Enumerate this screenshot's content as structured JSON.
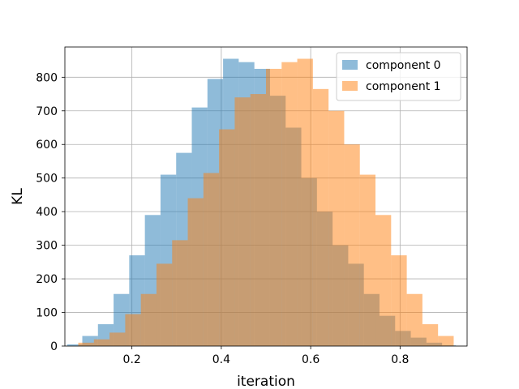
{
  "chart_data": {
    "type": "histogram",
    "xlabel": "iteration",
    "ylabel": "KL",
    "xlim": [
      0.05,
      0.95
    ],
    "ylim": [
      0,
      890
    ],
    "xticks": [
      0.2,
      0.4,
      0.6,
      0.8
    ],
    "xtick_labels": [
      "0.2",
      "0.4",
      "0.6",
      "0.8"
    ],
    "yticks": [
      0,
      100,
      200,
      300,
      400,
      500,
      600,
      700,
      800
    ],
    "ytick_labels": [
      "0",
      "100",
      "200",
      "300",
      "400",
      "500",
      "600",
      "700",
      "800"
    ],
    "grid": true,
    "legend_position": "upper right",
    "series": [
      {
        "name": "component 0",
        "color": "#1f77b4",
        "opacity": 0.5,
        "bin_edges": [
          0.055,
          0.089,
          0.124,
          0.159,
          0.194,
          0.229,
          0.264,
          0.299,
          0.334,
          0.369,
          0.404,
          0.439,
          0.474,
          0.509,
          0.544,
          0.579,
          0.614,
          0.649,
          0.684,
          0.719,
          0.754,
          0.789,
          0.824,
          0.859,
          0.894,
          0.925
        ],
        "counts": [
          5,
          30,
          65,
          155,
          270,
          390,
          510,
          575,
          710,
          795,
          855,
          845,
          825,
          745,
          650,
          500,
          400,
          300,
          245,
          155,
          90,
          45,
          25,
          10,
          2
        ]
      },
      {
        "name": "component 1",
        "color": "#ff7f0e",
        "opacity": 0.5,
        "bin_edges": [
          0.08,
          0.115,
          0.15,
          0.185,
          0.22,
          0.255,
          0.29,
          0.325,
          0.36,
          0.395,
          0.43,
          0.465,
          0.5,
          0.535,
          0.57,
          0.605,
          0.64,
          0.675,
          0.71,
          0.745,
          0.78,
          0.815,
          0.85,
          0.885,
          0.92
        ],
        "counts": [
          10,
          20,
          40,
          95,
          155,
          245,
          315,
          440,
          515,
          645,
          740,
          750,
          825,
          845,
          855,
          765,
          700,
          600,
          510,
          390,
          270,
          155,
          65,
          30,
          5
        ]
      }
    ]
  }
}
